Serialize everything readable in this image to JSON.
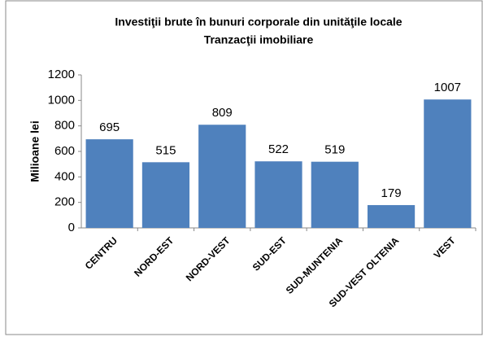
{
  "chart_data": {
    "type": "bar",
    "title": "Investiţii brute în bunuri corporale din unităţile locale",
    "subtitle": "Tranzacţii imobiliare",
    "y_label": "Milioane lei",
    "categories": [
      "CENTRU",
      "NORD-EST",
      "NORD-VEST",
      "SUD-EST",
      "SUD-MUNTENIA",
      "SUD-VEST OLTENIA",
      "VEST"
    ],
    "values": [
      695,
      515,
      809,
      522,
      519,
      179,
      1007
    ],
    "color": "#4f81bd",
    "ylim": [
      0,
      1200
    ],
    "yticks": [
      0,
      200,
      400,
      600,
      800,
      1000,
      1200
    ],
    "grid": false
  }
}
